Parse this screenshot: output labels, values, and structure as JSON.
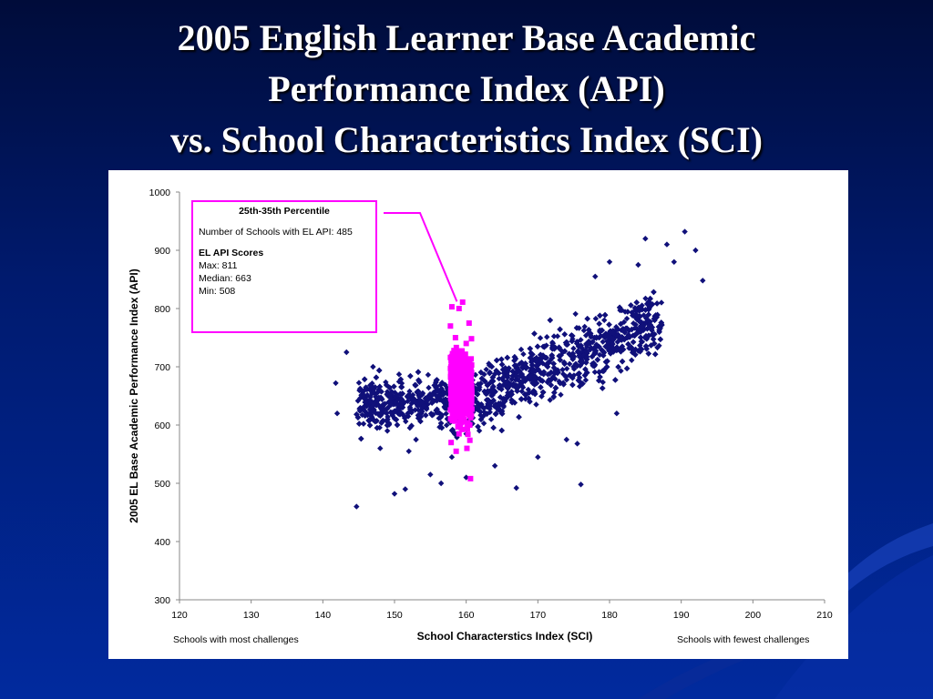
{
  "slide": {
    "title_lines": [
      "2005 English Learner Base Academic",
      "Performance Index (API)",
      "vs. School Characteristics Index (SCI)"
    ]
  },
  "annotation": {
    "heading": "25th-35th Percentile",
    "count_line": "Number of Schools with EL API: 485",
    "scores_heading": "EL API Scores",
    "max": "Max: 811",
    "median": "Median: 663",
    "min": "Min: 508"
  },
  "footer": {
    "left": "Schools with most challenges",
    "right": "Schools with fewest challenges"
  },
  "colors": {
    "all_schools": "#10107a",
    "highlight": "#ff00ff",
    "background_top": "#000c3a",
    "background_bottom": "#012a9e"
  },
  "chart_data": {
    "type": "scatter",
    "title": "",
    "xlabel": "School Characterstics Index (SCI)",
    "ylabel": "2005 EL Base Academic Performance Index (API)",
    "xlim": [
      120,
      210
    ],
    "ylim": [
      300,
      1000
    ],
    "x_ticks": [
      "120",
      "130",
      "140",
      "150",
      "160",
      "170",
      "180",
      "190",
      "200",
      "210"
    ],
    "y_ticks": [
      "300",
      "400",
      "500",
      "600",
      "700",
      "800",
      "900",
      "1000"
    ],
    "grid": false,
    "series": [
      {
        "marker": "diamond",
        "color": "#10107a",
        "points": [
          [
            142,
            620
          ],
          [
            141.8,
            672
          ],
          [
            143.3,
            725
          ],
          [
            144.7,
            460
          ],
          [
            145.5,
            657
          ],
          [
            146,
            640
          ],
          [
            147,
            700
          ],
          [
            148,
            560
          ],
          [
            150,
            482
          ],
          [
            151.5,
            490
          ],
          [
            153,
            575
          ],
          [
            155,
            515
          ],
          [
            156.5,
            500
          ],
          [
            160,
            510
          ],
          [
            167,
            492
          ],
          [
            176,
            498
          ],
          [
            175.5,
            568
          ],
          [
            181,
            620
          ],
          [
            185,
            920
          ],
          [
            188,
            910
          ],
          [
            190.5,
            932
          ],
          [
            192,
            900
          ],
          [
            193,
            848
          ],
          [
            189,
            880
          ],
          [
            184,
            875
          ],
          [
            180,
            880
          ],
          [
            178,
            855
          ],
          [
            181,
            728
          ],
          [
            174,
            575
          ],
          [
            170,
            545
          ],
          [
            164,
            530
          ],
          [
            158,
            545
          ],
          [
            152,
            555
          ],
          [
            149,
            590
          ],
          [
            147,
            610
          ]
        ]
      },
      {
        "marker": "square",
        "color": "#ff00ff",
        "points": [
          [
            158,
            803
          ],
          [
            159,
            800
          ],
          [
            159.5,
            811
          ],
          [
            157.8,
            770
          ],
          [
            160.4,
            775
          ],
          [
            158.5,
            750
          ],
          [
            160,
            740
          ],
          [
            159.2,
            725
          ],
          [
            158,
            705
          ],
          [
            160.6,
            700
          ],
          [
            159,
            680
          ],
          [
            157.9,
            663
          ],
          [
            160.2,
            655
          ],
          [
            158.7,
            640
          ],
          [
            159.8,
            630
          ],
          [
            158.2,
            610
          ],
          [
            160.5,
            600
          ],
          [
            159,
            585
          ],
          [
            157.9,
            570
          ],
          [
            160.1,
            560
          ],
          [
            158.6,
            555
          ],
          [
            160.6,
            508
          ]
        ]
      }
    ],
    "annotations": [
      "25th-35th Percentile"
    ]
  }
}
